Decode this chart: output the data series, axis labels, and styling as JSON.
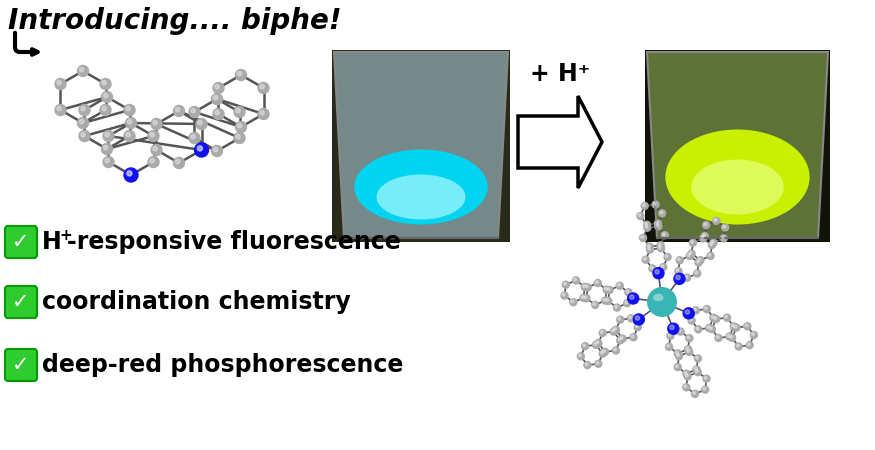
{
  "title": "Introducing.... biphe!",
  "background_color": "#ffffff",
  "bullet_points": [
    "H⁺-responsive fluorescence",
    "coordination chemistry",
    "deep-red phosphorescence"
  ],
  "bullet_color": "#2ecc2e",
  "bullet_fontsize": 17,
  "arrow_label": "+ H⁺",
  "arrow_label_fontsize": 17,
  "checkmark": "✓",
  "text_color": "#000000",
  "molecule_color": "#aaaaaa",
  "n_atom_color": "#1111ee",
  "ru_atom_color": "#3ab5b5",
  "bond_color": "#555555",
  "title_fontsize": 20
}
